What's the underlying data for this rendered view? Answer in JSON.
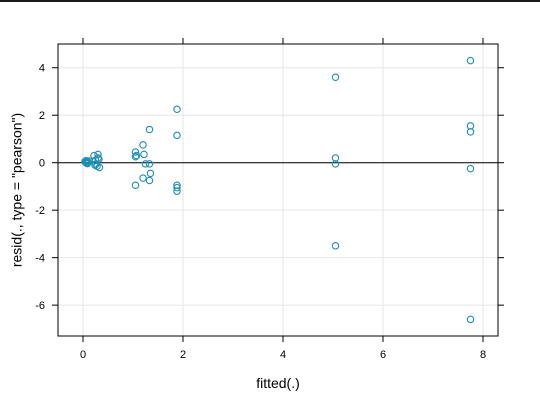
{
  "chart_data": {
    "type": "scatter",
    "xlabel": "fitted(.)",
    "ylabel": "resid(., type = \"pearson\")",
    "xlim": [
      -0.5,
      8.3
    ],
    "ylim": [
      -7.3,
      5.0
    ],
    "x_ticks": [
      0,
      2,
      4,
      6,
      8
    ],
    "y_ticks": [
      -6,
      -4,
      -2,
      0,
      2,
      4
    ],
    "grid": true,
    "reference_line_y": 0,
    "point_color": "#1f8fb3",
    "points": [
      {
        "x": 0.04,
        "y": 0.05
      },
      {
        "x": 0.05,
        "y": 0.02
      },
      {
        "x": 0.06,
        "y": 0.08
      },
      {
        "x": 0.07,
        "y": -0.02
      },
      {
        "x": 0.08,
        "y": 0.06
      },
      {
        "x": 0.1,
        "y": 0.03
      },
      {
        "x": 0.12,
        "y": 0.07
      },
      {
        "x": 0.09,
        "y": -0.04
      },
      {
        "x": 0.22,
        "y": 0.3
      },
      {
        "x": 0.25,
        "y": 0.1
      },
      {
        "x": 0.26,
        "y": -0.05
      },
      {
        "x": 0.28,
        "y": -0.15
      },
      {
        "x": 0.3,
        "y": 0.35
      },
      {
        "x": 0.32,
        "y": 0.15
      },
      {
        "x": 0.33,
        "y": -0.2
      },
      {
        "x": 0.24,
        "y": -0.1
      },
      {
        "x": 0.3,
        "y": 0.2
      },
      {
        "x": 1.05,
        "y": 0.45
      },
      {
        "x": 1.05,
        "y": 0.25
      },
      {
        "x": 1.07,
        "y": 0.3
      },
      {
        "x": 1.05,
        "y": -0.95
      },
      {
        "x": 1.2,
        "y": 0.75
      },
      {
        "x": 1.22,
        "y": 0.35
      },
      {
        "x": 1.25,
        "y": -0.05
      },
      {
        "x": 1.2,
        "y": -0.65
      },
      {
        "x": 1.33,
        "y": 1.4
      },
      {
        "x": 1.33,
        "y": -0.05
      },
      {
        "x": 1.35,
        "y": -0.45
      },
      {
        "x": 1.33,
        "y": -0.75
      },
      {
        "x": 1.88,
        "y": 2.25
      },
      {
        "x": 1.88,
        "y": 1.15
      },
      {
        "x": 1.88,
        "y": -0.95
      },
      {
        "x": 1.88,
        "y": -1.05
      },
      {
        "x": 1.88,
        "y": -1.2
      },
      {
        "x": 5.05,
        "y": 3.6
      },
      {
        "x": 5.05,
        "y": 0.2
      },
      {
        "x": 5.05,
        "y": -0.05
      },
      {
        "x": 5.05,
        "y": -3.5
      },
      {
        "x": 7.75,
        "y": 4.3
      },
      {
        "x": 7.75,
        "y": 1.55
      },
      {
        "x": 7.75,
        "y": 1.3
      },
      {
        "x": 7.75,
        "y": -0.25
      },
      {
        "x": 7.75,
        "y": -6.6
      }
    ]
  }
}
